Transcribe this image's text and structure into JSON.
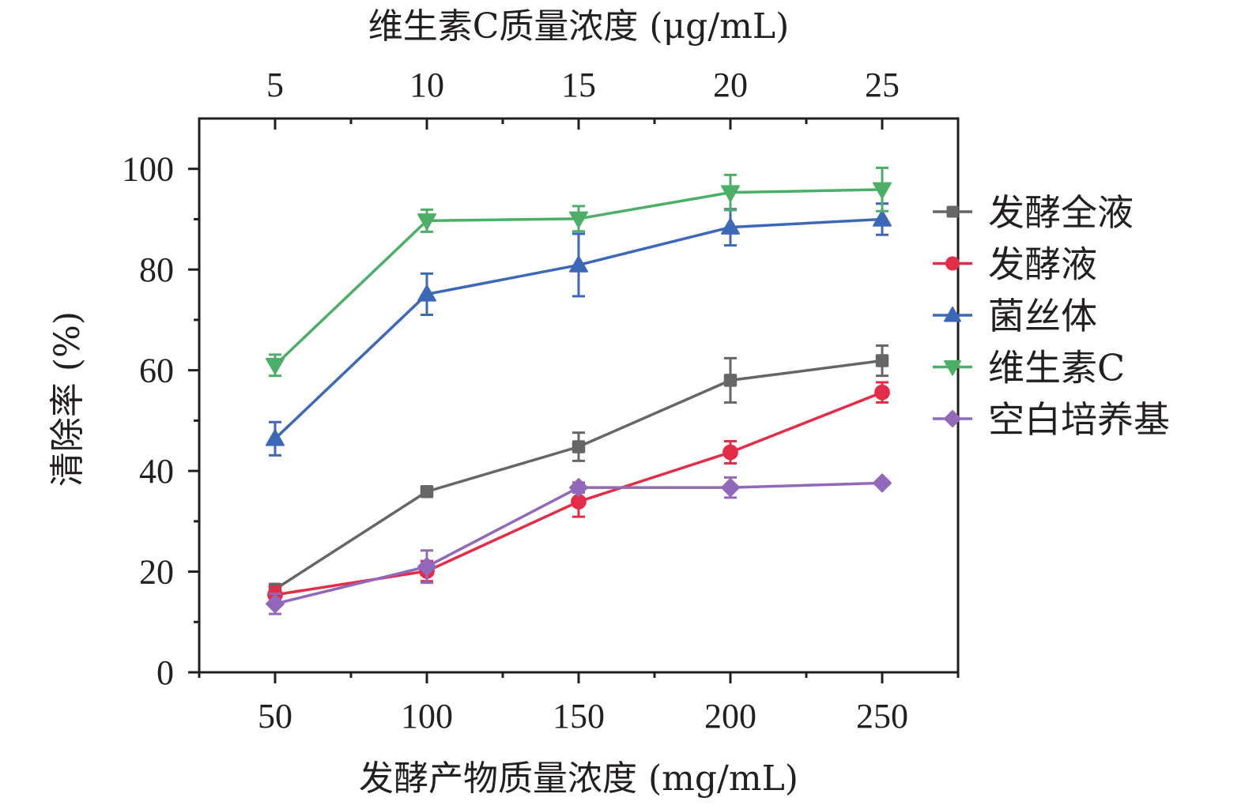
{
  "chart_data": {
    "type": "line",
    "title": "",
    "xlabel": "发酵产物质量浓度 (mg/mL)",
    "ylabel": "清除率 (%)",
    "x2label": "维生素C质量浓度 (μg/mL)",
    "x": [
      50,
      100,
      150,
      200,
      250
    ],
    "xticks": [
      "50",
      "100",
      "150",
      "200",
      "250"
    ],
    "x2ticks": [
      "5",
      "10",
      "15",
      "20",
      "25"
    ],
    "yticks": [
      "0",
      "20",
      "40",
      "60",
      "80",
      "100"
    ],
    "xlim": [
      25,
      275
    ],
    "ylim": [
      0,
      110
    ],
    "grid": false,
    "legend_position": "right",
    "series": [
      {
        "name": "发酵全液",
        "color": "#666666",
        "marker": "square",
        "values": [
          16.5,
          35.9,
          44.8,
          58.0,
          61.9
        ],
        "errors": [
          0.8,
          0.8,
          2.8,
          4.4,
          3.0
        ]
      },
      {
        "name": "发酵液",
        "color": "#e32d46",
        "marker": "circle",
        "values": [
          15.4,
          20.1,
          33.9,
          43.7,
          55.6
        ],
        "errors": [
          1.6,
          2.0,
          3.0,
          2.2,
          2.0
        ]
      },
      {
        "name": "菌丝体",
        "color": "#3d68b8",
        "marker": "triangle-up",
        "values": [
          46.4,
          75.1,
          80.9,
          88.4,
          90.0
        ],
        "errors": [
          3.3,
          4.1,
          6.2,
          3.6,
          3.1
        ]
      },
      {
        "name": "维生素C",
        "color": "#4caf68",
        "marker": "triangle-down",
        "values": [
          61.0,
          89.7,
          90.1,
          95.3,
          95.9
        ],
        "errors": [
          2.1,
          2.2,
          2.5,
          3.5,
          4.3
        ]
      },
      {
        "name": "空白培养基",
        "color": "#9268bb",
        "marker": "diamond",
        "values": [
          13.6,
          21.0,
          36.7,
          36.7,
          37.6
        ],
        "errors": [
          2.0,
          3.2,
          1.0,
          2.0,
          0.5
        ]
      }
    ]
  }
}
